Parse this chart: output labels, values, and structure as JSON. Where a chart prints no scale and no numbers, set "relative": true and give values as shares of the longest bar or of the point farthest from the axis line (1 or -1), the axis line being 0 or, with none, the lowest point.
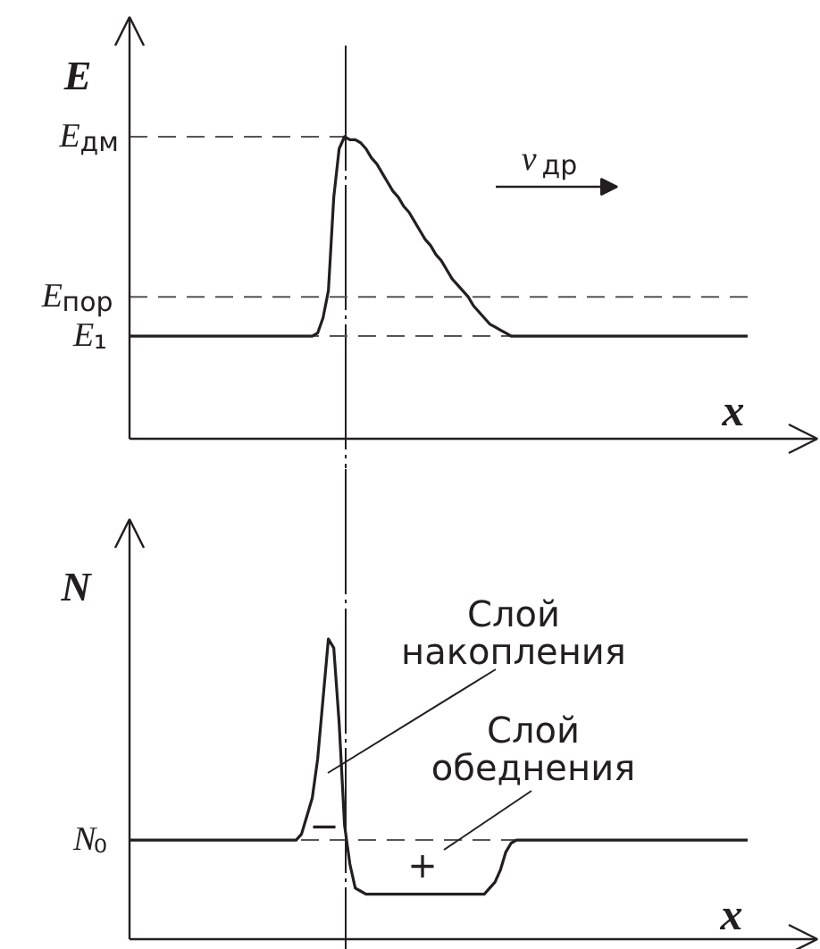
{
  "chart_data": [
    {
      "type": "line",
      "ylabel": "E",
      "xlabel": "x",
      "relative": true,
      "categories": [
        null,
        null,
        null,
        null,
        null,
        null,
        null,
        null,
        null,
        null,
        null,
        null,
        null,
        null,
        null,
        null,
        null,
        null,
        null,
        null,
        null,
        null,
        null,
        null,
        null,
        null,
        null,
        null,
        null,
        null,
        null,
        null,
        null,
        null,
        null,
        null,
        null,
        null,
        null,
        null,
        null,
        null,
        null,
        null,
        null,
        null,
        null,
        null,
        null,
        null,
        null,
        null,
        null,
        null,
        null,
        null,
        null,
        null,
        null,
        null,
        null,
        null,
        null,
        null,
        null,
        null,
        null,
        null,
        null,
        null,
        null,
        null,
        null,
        null,
        null,
        null,
        null,
        null,
        null,
        null,
        null,
        null,
        null,
        null,
        null,
        null,
        null,
        null,
        null,
        null,
        null,
        null,
        null,
        null,
        null,
        null,
        null,
        null,
        null,
        null,
        null,
        null,
        null,
        null,
        null,
        null,
        null,
        null,
        null,
        null,
        null,
        null,
        null,
        null,
        null,
        null
      ],
      "series": [
        {
          "color": "#231f20",
          "values": [
            0.34,
            0.34,
            0.34,
            0.34,
            0.34,
            0.34,
            0.34,
            0.34,
            0.34,
            0.34,
            0.34,
            0.34,
            0.34,
            0.34,
            0.34,
            0.34,
            0.34,
            0.34,
            0.34,
            0.34,
            0.34,
            0.34,
            0.34,
            0.34,
            0.34,
            0.34,
            0.34,
            0.34,
            0.34,
            0.34,
            0.34,
            0.34,
            0.34,
            0.34,
            0.34,
            0.35,
            0.4,
            0.49,
            0.8,
            0.96,
            1.0,
            0.99,
            0.99,
            0.98,
            0.96,
            0.93,
            0.91,
            0.88,
            0.85,
            0.82,
            0.8,
            0.77,
            0.75,
            0.72,
            0.69,
            0.66,
            0.64,
            0.61,
            0.59,
            0.56,
            0.53,
            0.51,
            0.49,
            0.47,
            0.44,
            0.42,
            0.4,
            0.38,
            0.37,
            0.36,
            0.35,
            0.34,
            0.34,
            0.34,
            0.34,
            0.34,
            0.34,
            0.34,
            0.34,
            0.34,
            0.34,
            0.34,
            0.34,
            0.34,
            0.34,
            0.34,
            0.34,
            0.34,
            0.34,
            0.34,
            0.34,
            0.34,
            0.34,
            0.34,
            0.34,
            0.34,
            0.34,
            0.34,
            0.34,
            0.34,
            0.34,
            0.34,
            0.34,
            0.34,
            0.34,
            0.34,
            0.34,
            0.34,
            0.34,
            0.34,
            0.34,
            0.34,
            0.34,
            0.34,
            0.34,
            0.34
          ]
        }
      ],
      "ref_lines": [
        {
          "axis": "y",
          "value": 1,
          "label": "E$_{дм}$",
          "line_style": "dashed"
        },
        {
          "axis": "y",
          "value": 0.47,
          "label": "E$_{пор}$",
          "line_style": "dashed"
        },
        {
          "axis": "y",
          "value": 0.34,
          "label": "E₁",
          "line_style": "dashed"
        }
      ],
      "annotations": [
        "v$_{др}$"
      ]
    },
    {
      "type": "line",
      "ylabel": "N",
      "xlabel": "x",
      "relative": true,
      "categories": [
        null,
        null,
        null,
        null,
        null,
        null,
        null,
        null,
        null,
        null,
        null,
        null,
        null,
        null,
        null,
        null,
        null,
        null,
        null,
        null,
        null,
        null,
        null,
        null,
        null,
        null,
        null,
        null,
        null,
        null,
        null,
        null,
        null,
        null,
        null,
        null,
        null,
        null,
        null,
        null,
        null,
        null,
        null,
        null,
        null,
        null,
        null,
        null,
        null,
        null,
        null,
        null,
        null,
        null,
        null,
        null,
        null,
        null,
        null,
        null,
        null,
        null,
        null,
        null,
        null,
        null,
        null,
        null,
        null,
        null,
        null,
        null,
        null,
        null,
        null,
        null,
        null,
        null,
        null,
        null,
        null,
        null,
        null,
        null,
        null,
        null,
        null,
        null,
        null,
        null,
        null,
        null,
        null,
        null,
        null,
        null,
        null,
        null,
        null,
        null,
        null,
        null,
        null,
        null,
        null,
        null,
        null,
        null,
        null,
        null,
        null,
        null,
        null,
        null,
        null,
        null
      ],
      "series": [
        {
          "color": "#231f20",
          "values": [
            0.33,
            0.33,
            0.33,
            0.33,
            0.33,
            0.33,
            0.33,
            0.33,
            0.33,
            0.33,
            0.33,
            0.33,
            0.33,
            0.33,
            0.33,
            0.33,
            0.33,
            0.33,
            0.33,
            0.33,
            0.33,
            0.33,
            0.33,
            0.33,
            0.33,
            0.33,
            0.33,
            0.33,
            0.33,
            0.33,
            0.33,
            0.33,
            0.35,
            0.41,
            0.47,
            0.6,
            0.8,
            1.0,
            0.97,
            0.72,
            0.38,
            0.25,
            0.17,
            0.16,
            0.15,
            0.15,
            0.15,
            0.15,
            0.15,
            0.15,
            0.15,
            0.15,
            0.15,
            0.15,
            0.15,
            0.15,
            0.15,
            0.15,
            0.15,
            0.15,
            0.15,
            0.15,
            0.15,
            0.15,
            0.15,
            0.15,
            0.15,
            0.17,
            0.19,
            0.23,
            0.29,
            0.32,
            0.33,
            0.33,
            0.33,
            0.33,
            0.33,
            0.33,
            0.33,
            0.33,
            0.33,
            0.33,
            0.33,
            0.33,
            0.33,
            0.33,
            0.33,
            0.33,
            0.33,
            0.33,
            0.33,
            0.33,
            0.33,
            0.33,
            0.33,
            0.33,
            0.33,
            0.33,
            0.33,
            0.33,
            0.33,
            0.33,
            0.33,
            0.33,
            0.33,
            0.33,
            0.33,
            0.33,
            0.33,
            0.33,
            0.33,
            0.33,
            0.33,
            0.33,
            0.33,
            0.33
          ]
        }
      ],
      "ref_lines": [
        {
          "axis": "y",
          "value": 0.33,
          "label": "N₀",
          "line_style": "dashed"
        }
      ],
      "annotations": [
        "Слой\nнакопления",
        "Слой\nобеднения",
        "−",
        "+"
      ]
    }
  ]
}
